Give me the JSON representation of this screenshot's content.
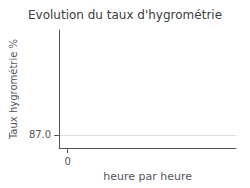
{
  "chart_data": {
    "type": "line",
    "title": "Evolution du taux d'hygrométrie",
    "xlabel": "heure par heure",
    "ylabel": "Taux hygrométrie %",
    "xlim": [
      -0.5,
      10
    ],
    "xticks": [
      0
    ],
    "ylim": [
      86.5,
      91
    ],
    "yticks": [
      {
        "value": 87,
        "label": "87.0"
      }
    ],
    "grid": true
  }
}
